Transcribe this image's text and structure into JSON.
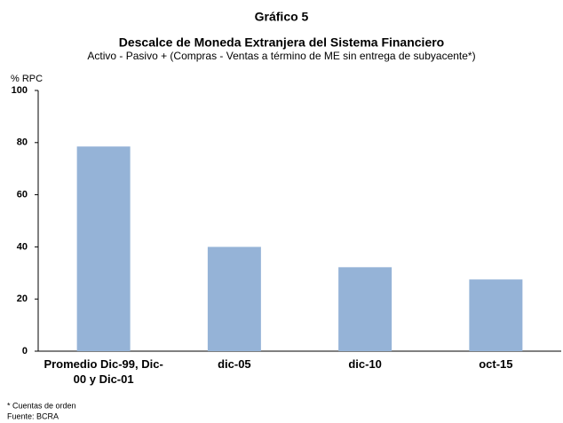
{
  "chart_data": {
    "type": "bar",
    "title": "Gráfico 5",
    "subtitle_bold": "Descalce de Moneda Extranjera del Sistema Financiero",
    "subtitle": "Activo - Pasivo + (Compras - Ventas a término de ME sin entrega de subyacente*)",
    "y_label": "% RPC",
    "categories": [
      "Promedio Dic-99, Dic-00 y Dic-01",
      "dic-05",
      "dic-10",
      "oct-15"
    ],
    "values": [
      78.5,
      40,
      32.2,
      27.5
    ],
    "color": "#95b3d7",
    "ylim": [
      0,
      100
    ],
    "yticks": [
      0,
      20,
      40,
      60,
      80,
      100
    ],
    "grid": false,
    "notes": [
      "* Cuentas de orden",
      "Fuente: BCRA"
    ]
  }
}
